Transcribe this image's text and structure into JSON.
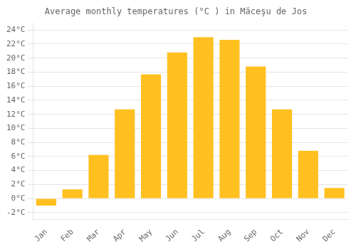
{
  "chart_data": {
    "type": "bar",
    "title": "Average monthly temperatures (°C ) in Măceşu de Jos",
    "categories": [
      "Jan",
      "Feb",
      "Mar",
      "Apr",
      "May",
      "Jun",
      "Jul",
      "Aug",
      "Sep",
      "Oct",
      "Nov",
      "Dec"
    ],
    "values": [
      -1.0,
      1.3,
      6.2,
      12.7,
      17.7,
      20.8,
      23.0,
      22.6,
      18.8,
      12.7,
      6.8,
      1.5
    ],
    "color": "#FFC020",
    "ylim": [
      -3,
      25
    ],
    "yticks": [
      {
        "value": -2,
        "label": "-2°C"
      },
      {
        "value": 0,
        "label": "0°C"
      },
      {
        "value": 2,
        "label": "2°C"
      },
      {
        "value": 4,
        "label": "4°C"
      },
      {
        "value": 6,
        "label": "6°C"
      },
      {
        "value": 8,
        "label": "8°C"
      },
      {
        "value": 10,
        "label": "10°C"
      },
      {
        "value": 12,
        "label": "12°C"
      },
      {
        "value": 14,
        "label": "14°C"
      },
      {
        "value": 16,
        "label": "16°C"
      },
      {
        "value": 18,
        "label": "18°C"
      },
      {
        "value": 20,
        "label": "20°C"
      },
      {
        "value": 22,
        "label": "22°C"
      },
      {
        "value": 24,
        "label": "24°C"
      }
    ],
    "grid": "y"
  }
}
